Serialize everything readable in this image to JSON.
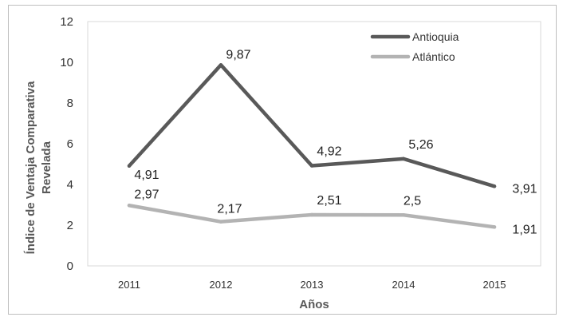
{
  "chart_data": {
    "type": "line",
    "title": "",
    "xlabel": "Años",
    "ylabel": "Índice de Ventaja Comparativa Revelada",
    "ylabel_lines": [
      "Índice de Ventaja Comparativa",
      "Revelada"
    ],
    "categories": [
      "2011",
      "2012",
      "2013",
      "2014",
      "2015"
    ],
    "ylim": [
      0,
      12
    ],
    "yticks": [
      0,
      2,
      4,
      6,
      8,
      10,
      12
    ],
    "grid": false,
    "legend_position": "top-right",
    "series": [
      {
        "name": "Antioquia",
        "values": [
          4.91,
          9.87,
          4.92,
          5.26,
          3.91
        ],
        "labels": [
          "4,91",
          "9,87",
          "4,92",
          "5,26",
          "3,91"
        ],
        "color": "#595959"
      },
      {
        "name": "Atlántico",
        "values": [
          2.97,
          2.17,
          2.51,
          2.5,
          1.91
        ],
        "labels": [
          "2,97",
          "2,17",
          "2,51",
          "2,5",
          "1,91"
        ],
        "color": "#b3b3b3"
      }
    ]
  }
}
